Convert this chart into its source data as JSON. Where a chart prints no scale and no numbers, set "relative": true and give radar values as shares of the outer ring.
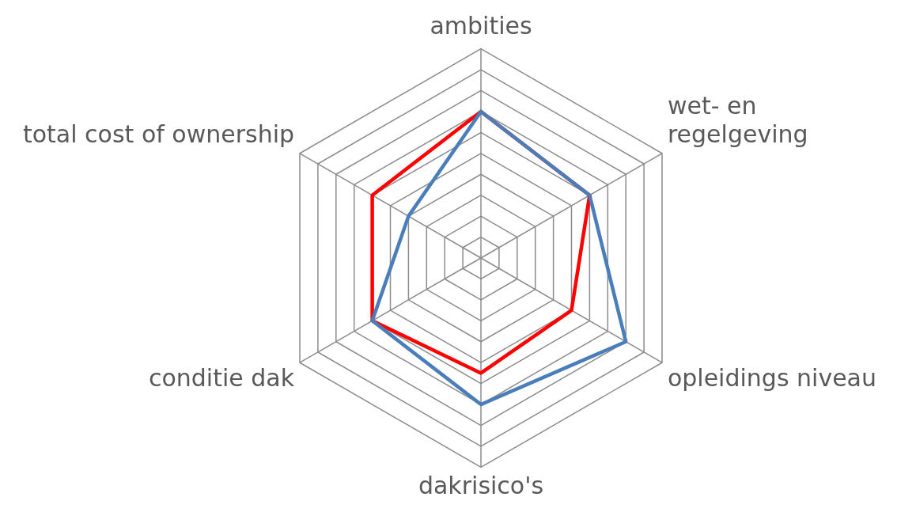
{
  "chart_data": {
    "type": "radar",
    "relative": true,
    "categories": [
      "ambities",
      "wet- en regelgeving",
      "opleidings niveau",
      "dakrisico's",
      "conditie dak",
      "total cost of ownership"
    ],
    "series": [
      {
        "color": "#4a7ebb",
        "values": [
          0.7,
          0.6,
          0.8,
          0.7,
          0.6,
          0.4
        ]
      },
      {
        "color": "#ff0000",
        "values": [
          0.7,
          0.6,
          0.5,
          0.55,
          0.6,
          0.6
        ]
      }
    ],
    "grid": true,
    "legend": false,
    "marker": "none"
  }
}
